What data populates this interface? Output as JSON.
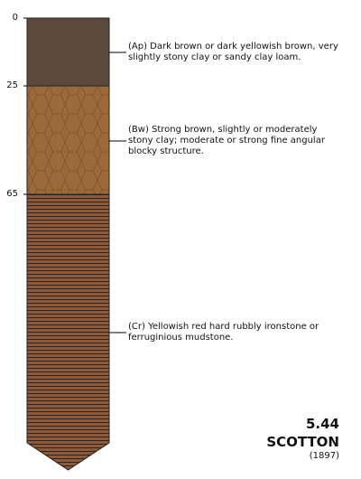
{
  "depth_labels": [
    "0",
    "25",
    "65"
  ],
  "horizons": [
    {
      "description": "(Ap) Dark brown or dark yellowish brown, very slightly stony clay or sandy clay loam.",
      "color": "#5b4a3c"
    },
    {
      "description": "(Bw) Strong brown, slightly or moderately stony clay; moderate or strong fine angular blocky structure.",
      "color": "#9c6a3a",
      "pattern": "hexagonal blocky"
    },
    {
      "description": "(Cr) Yellowish red hard rubbly ironstone or ferruginious mudstone.",
      "color": "#8b5a3c",
      "pattern": "horizontal lines"
    }
  ],
  "profile": {
    "code": "5.44",
    "name": "SCOTTON",
    "year": "(1897)"
  }
}
